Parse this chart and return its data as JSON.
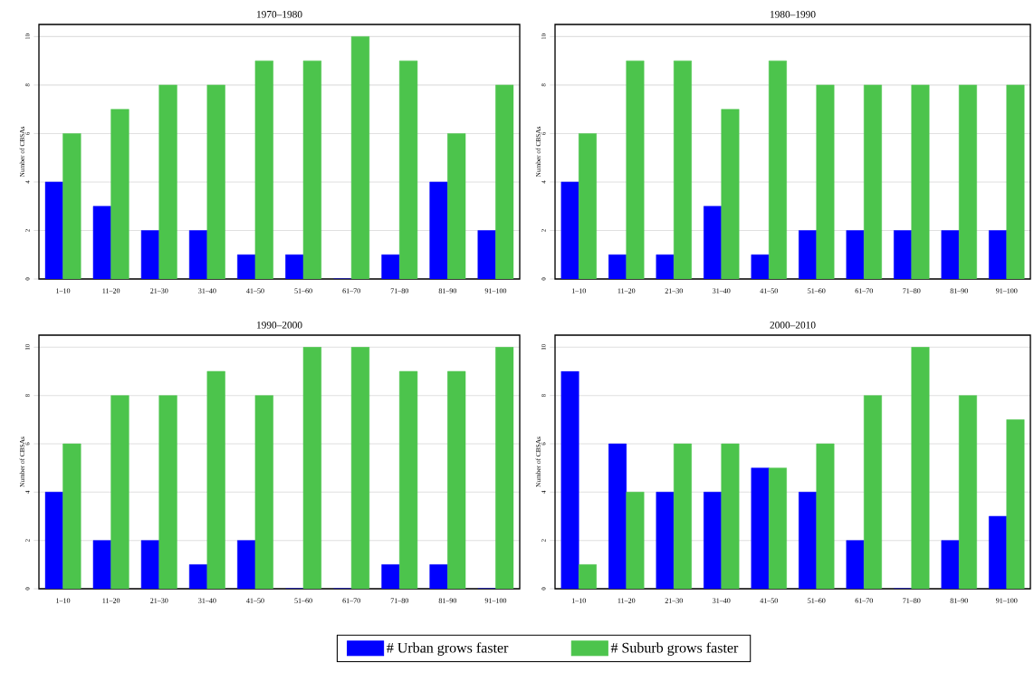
{
  "chart_data": [
    {
      "type": "bar",
      "title": "1970–1980",
      "ylabel": "Number of CBSAs",
      "categories": [
        "1–10",
        "11–20",
        "21–30",
        "31–40",
        "41–50",
        "51–60",
        "61–70",
        "71–80",
        "81–90",
        "91–100"
      ],
      "series": [
        {
          "color": "#0000ff",
          "values": [
            4,
            3,
            2,
            2,
            1,
            1,
            0,
            1,
            4,
            2
          ]
        },
        {
          "color": "#4cc44c",
          "values": [
            6,
            7,
            8,
            8,
            9,
            9,
            10,
            9,
            6,
            8
          ]
        }
      ],
      "ylim": [
        0,
        10.5
      ],
      "yticks": [
        0,
        2,
        4,
        6,
        8,
        10
      ],
      "grid": "y"
    },
    {
      "type": "bar",
      "title": "1980–1990",
      "ylabel": "Number of CBSAs",
      "categories": [
        "1–10",
        "11–20",
        "21–30",
        "31–40",
        "41–50",
        "51–60",
        "61–70",
        "71–80",
        "81–90",
        "91–100"
      ],
      "series": [
        {
          "color": "#0000ff",
          "values": [
            4,
            1,
            1,
            3,
            1,
            2,
            2,
            2,
            2,
            2
          ]
        },
        {
          "color": "#4cc44c",
          "values": [
            6,
            9,
            9,
            7,
            9,
            8,
            8,
            8,
            8,
            8
          ]
        }
      ],
      "ylim": [
        0,
        10.5
      ],
      "yticks": [
        0,
        2,
        4,
        6,
        8,
        10
      ],
      "grid": "y"
    },
    {
      "type": "bar",
      "title": "1990–2000",
      "ylabel": "Number of CBSAs",
      "categories": [
        "1–10",
        "11–20",
        "21–30",
        "31–40",
        "41–50",
        "51–60",
        "61–70",
        "71–80",
        "81–90",
        "91–100"
      ],
      "series": [
        {
          "name": "# Urban grows faster",
          "color": "#0000ff",
          "values": [
            4,
            2,
            2,
            1,
            2,
            0,
            0,
            1,
            1,
            0
          ]
        },
        {
          "name": "# Suburb grows faster",
          "color": "#4cc44c",
          "values": [
            6,
            8,
            8,
            9,
            8,
            10,
            10,
            9,
            9,
            10
          ]
        }
      ],
      "ylim": [
        0,
        10.5
      ],
      "yticks": [
        0,
        2,
        4,
        6,
        8,
        10
      ],
      "grid": "y",
      "legend": "bottom"
    },
    {
      "type": "bar",
      "title": "2000–2010",
      "ylabel": "Number of CBSAs",
      "categories": [
        "1–10",
        "11–20",
        "21–30",
        "31–40",
        "41–50",
        "51–60",
        "61–70",
        "71–80",
        "81–90",
        "91–100"
      ],
      "series": [
        {
          "color": "#0000ff",
          "values": [
            9,
            6,
            4,
            4,
            5,
            4,
            2,
            0,
            2,
            3
          ]
        },
        {
          "color": "#4cc44c",
          "values": [
            1,
            4,
            6,
            6,
            5,
            6,
            8,
            10,
            8,
            7
          ]
        }
      ],
      "ylim": [
        0,
        10.5
      ],
      "yticks": [
        0,
        2,
        4,
        6,
        8,
        10
      ],
      "grid": "y"
    }
  ]
}
